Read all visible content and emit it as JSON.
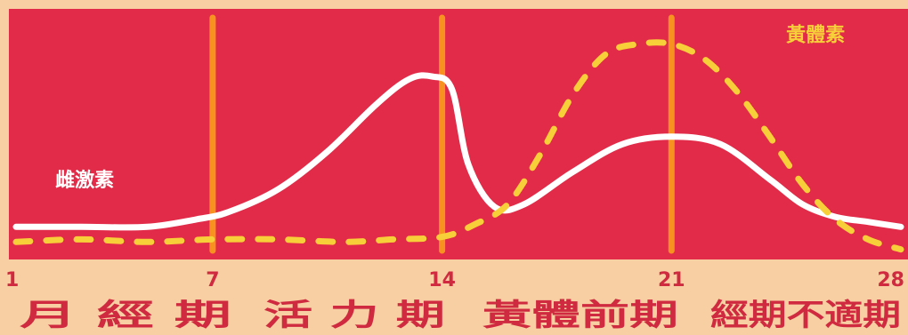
{
  "chart_data": {
    "type": "line",
    "xlim": [
      1,
      28
    ],
    "ylim": [
      0,
      1
    ],
    "x_ticks": [
      {
        "value": 1,
        "label": "1"
      },
      {
        "value": 7,
        "label": "7"
      },
      {
        "value": 14,
        "label": "14"
      },
      {
        "value": 21,
        "label": "21"
      },
      {
        "value": 28,
        "label": "28"
      }
    ],
    "phase_lines": [
      7,
      14,
      21
    ],
    "phases": [
      {
        "label": "月 經 期",
        "from": 1,
        "to": 7
      },
      {
        "label": "活 力 期",
        "from": 7,
        "to": 14
      },
      {
        "label": "黃體前期",
        "from": 14,
        "to": 21
      },
      {
        "label": "經期不適期",
        "from": 21,
        "to": 28
      }
    ],
    "series": [
      {
        "name": "雌激素",
        "style": "solid",
        "color": "#ffffff",
        "label_at": [
          2.2,
          0.29
        ],
        "x": [
          1,
          3,
          5,
          6.5,
          7.5,
          9,
          10.5,
          12,
          13,
          13.7,
          14.3,
          14.8,
          15.6,
          16.5,
          18,
          19.5,
          21,
          22.5,
          24,
          25,
          26,
          27,
          28
        ],
        "y": [
          0.13,
          0.13,
          0.13,
          0.16,
          0.19,
          0.28,
          0.43,
          0.62,
          0.72,
          0.73,
          0.68,
          0.38,
          0.21,
          0.22,
          0.35,
          0.46,
          0.49,
          0.46,
          0.32,
          0.22,
          0.17,
          0.15,
          0.13
        ]
      },
      {
        "name": "黃體素",
        "style": "dashed",
        "color": "#f7cf39",
        "label_at": [
          24.5,
          0.87
        ],
        "x": [
          1,
          3,
          5,
          7,
          9,
          11,
          12.5,
          14,
          15,
          16,
          17,
          18,
          19,
          20,
          21,
          22,
          23,
          24,
          25,
          26,
          27,
          28
        ],
        "y": [
          0.07,
          0.08,
          0.07,
          0.08,
          0.08,
          0.07,
          0.08,
          0.09,
          0.14,
          0.22,
          0.42,
          0.66,
          0.82,
          0.86,
          0.86,
          0.8,
          0.67,
          0.49,
          0.3,
          0.16,
          0.08,
          0.04
        ]
      }
    ]
  },
  "colors": {
    "page_background": "#f7cfa3",
    "plot_background": "#e22b48",
    "phase_line": "#f79221",
    "label_text": "#cf2a3f"
  }
}
